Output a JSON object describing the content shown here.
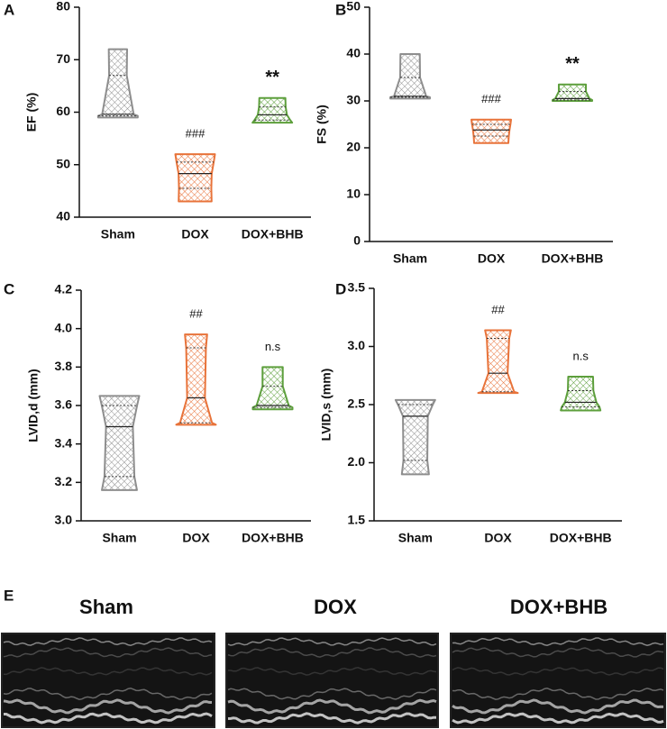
{
  "chart_data": [
    {
      "type": "violin",
      "panel_label": "A",
      "y_label": "EF (%)",
      "categories": [
        "Sham",
        "DOX",
        "DOX+BHB"
      ],
      "colors": [
        "#8e8e8e",
        "#e8733a",
        "#5d9f3c"
      ],
      "values": [
        [
          59,
          59.3,
          59.6,
          67,
          72
        ],
        [
          43,
          45.5,
          48.3,
          50.5,
          52
        ],
        [
          58,
          58.5,
          59.5,
          61,
          62.7
        ]
      ],
      "ylim": [
        40,
        80
      ],
      "yticks": [
        40,
        50,
        60,
        70,
        80
      ],
      "annotations": [
        {
          "category": "DOX",
          "text": "###"
        },
        {
          "category": "DOX+BHB",
          "text": "**"
        }
      ]
    },
    {
      "type": "violin",
      "panel_label": "B",
      "y_label": "FS (%)",
      "categories": [
        "Sham",
        "DOX",
        "DOX+BHB"
      ],
      "colors": [
        "#8e8e8e",
        "#e8733a",
        "#5d9f3c"
      ],
      "values": [
        [
          30.5,
          30.8,
          31,
          35,
          40
        ],
        [
          21,
          22.5,
          23.8,
          25,
          26
        ],
        [
          30,
          30.2,
          30.5,
          32,
          33.5
        ]
      ],
      "ylim": [
        0,
        50
      ],
      "yticks": [
        0,
        10,
        20,
        30,
        40,
        50
      ],
      "annotations": [
        {
          "category": "DOX",
          "text": "###"
        },
        {
          "category": "DOX+BHB",
          "text": "**"
        }
      ]
    },
    {
      "type": "violin",
      "panel_label": "C",
      "y_label": "LVID,d (mm)",
      "categories": [
        "Sham",
        "DOX",
        "DOX+BHB"
      ],
      "colors": [
        "#8e8e8e",
        "#e8733a",
        "#5d9f3c"
      ],
      "values": [
        [
          3.16,
          3.23,
          3.49,
          3.6,
          3.65
        ],
        [
          3.5,
          3.51,
          3.64,
          3.9,
          3.97
        ],
        [
          3.58,
          3.59,
          3.6,
          3.7,
          3.8
        ]
      ],
      "ylim": [
        3.0,
        4.2
      ],
      "yticks": [
        {
          "value": 3.0,
          "label": "3.0"
        },
        3.2,
        3.4,
        3.6,
        3.8,
        {
          "value": 4.0,
          "label": "4.0"
        },
        4.2
      ],
      "annotations": [
        {
          "category": "DOX",
          "text": "##"
        },
        {
          "category": "DOX+BHB",
          "text": "n.s"
        }
      ]
    },
    {
      "type": "violin",
      "panel_label": "D",
      "y_label": "LVID,s (mm)",
      "categories": [
        "Sham",
        "DOX",
        "DOX+BHB"
      ],
      "colors": [
        "#8e8e8e",
        "#e8733a",
        "#5d9f3c"
      ],
      "values": [
        [
          1.9,
          2.02,
          2.4,
          2.5,
          2.54
        ],
        [
          2.6,
          2.61,
          2.77,
          3.07,
          3.14
        ],
        [
          2.45,
          2.48,
          2.52,
          2.62,
          2.74
        ]
      ],
      "ylim": [
        1.5,
        3.5
      ],
      "yticks": [
        1.5,
        {
          "value": 2.0,
          "label": "2.0"
        },
        2.5,
        {
          "value": 3.0,
          "label": "3.0"
        },
        3.5
      ],
      "annotations": [
        {
          "category": "DOX",
          "text": "##"
        },
        {
          "category": "DOX+BHB",
          "text": "n.s"
        }
      ]
    }
  ],
  "echo": {
    "panel_label": "E",
    "titles": [
      "Sham",
      "DOX",
      "DOX+BHB"
    ]
  }
}
